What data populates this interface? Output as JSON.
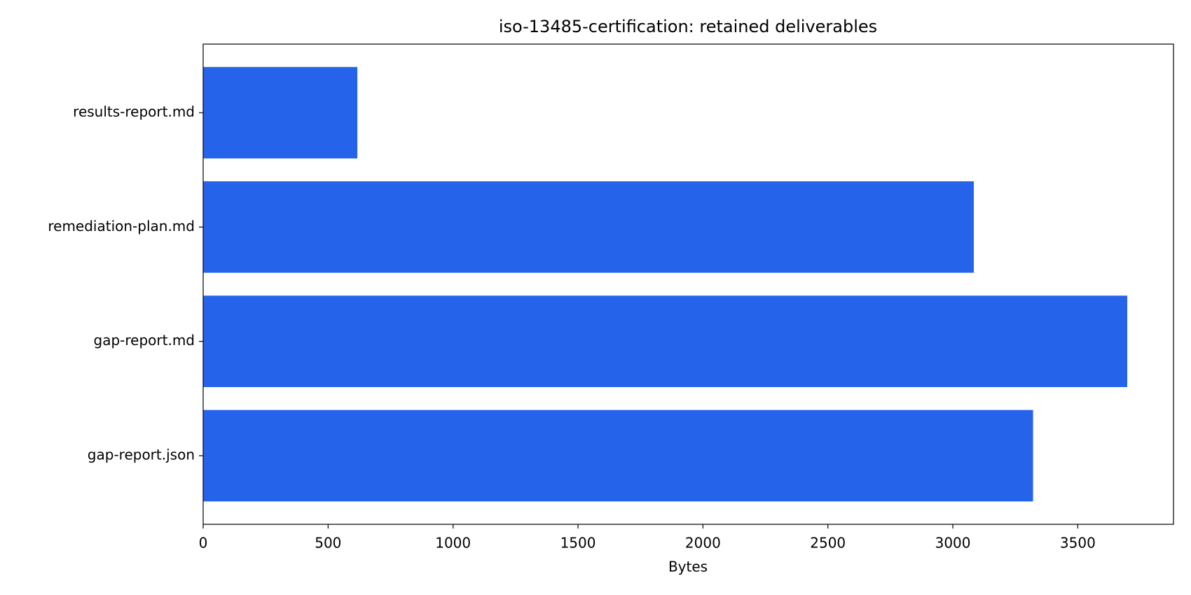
{
  "chart_data": {
    "type": "barh",
    "title": "iso-13485-certification: retained deliverables",
    "xlabel": "Bytes",
    "categories": [
      "gap-report.json",
      "gap-report.md",
      "remediation-plan.md",
      "results-report.md"
    ],
    "values": [
      3321,
      3698,
      3084,
      617
    ],
    "color": "#2563eb",
    "xlim": [
      0,
      3883
    ],
    "xticks": [
      0,
      500,
      1000,
      1500,
      2000,
      2500,
      3000,
      3500
    ]
  }
}
